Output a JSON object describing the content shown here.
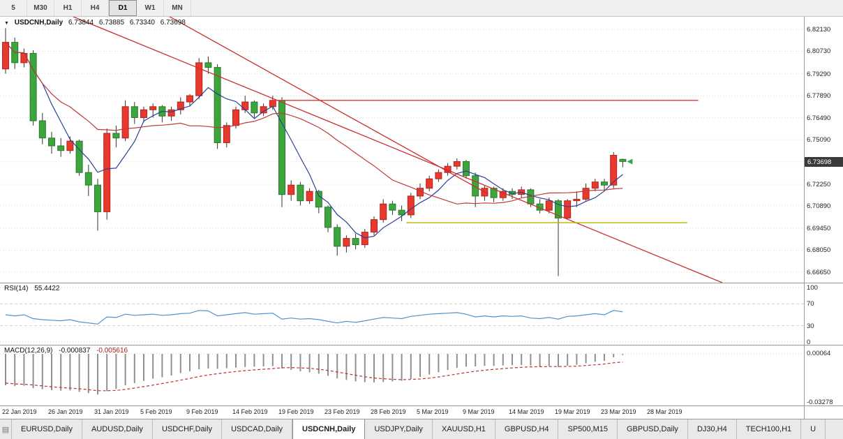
{
  "toolbar": {
    "timeframes": [
      "5",
      "M30",
      "H1",
      "H4",
      "D1",
      "W1",
      "MN"
    ],
    "active_timeframe": "D1"
  },
  "chart_header": {
    "dropdown_icon": "triangle-down",
    "symbol_period": "USDCNH,Daily",
    "open": "6.73844",
    "high": "6.73885",
    "low": "6.73340",
    "close": "6.73698"
  },
  "price_axis": {
    "labels": [
      "6.82130",
      "6.80730",
      "6.79290",
      "6.77890",
      "6.76490",
      "6.75090",
      "6.72250",
      "6.70890",
      "6.69450",
      "6.68050",
      "6.66650"
    ],
    "current_price": "6.73698"
  },
  "rsi_panel": {
    "label": "RSI(14)",
    "value": "55.4422",
    "axis_labels": [
      100,
      70,
      30,
      0
    ]
  },
  "macd_panel": {
    "label": "MACD(12,26,9)",
    "main_value": "-0.000837",
    "signal_value": "-0.005616",
    "axis_labels": [
      0.00064,
      -0.03278
    ]
  },
  "tabs": [
    "EURUSD,Daily",
    "AUDUSD,Daily",
    "USDCHF,Daily",
    "USDCAD,Daily",
    "USDCNH,Daily",
    "USDJPY,Daily",
    "XAUUSD,H1",
    "GBPUSD,H4",
    "SP500,M15",
    "GBPUSD,Daily",
    "DJ30,H4",
    "TECH100,H1",
    "U"
  ],
  "active_tab": "USDCNH,Daily",
  "colors": {
    "bull": "#e8392e",
    "bull_border": "#b3241c",
    "bear": "#3da53d",
    "bear_border": "#2b7a2b",
    "wick": "#333333",
    "ma_fast": "#2b3f95",
    "ma_slow": "#c03a3a",
    "trendline": "#cc2e2e",
    "hline_red": "#e23535",
    "hline_yellow": "#b5b800",
    "rsi_line": "#4f92cd",
    "macd_bar": "#8f8f8f",
    "macd_signal": "#c03030",
    "badge_bg": "#3a3a3a",
    "badge_text": "#ffffff",
    "marker": "#2fa84a"
  },
  "chart_data": {
    "type": "candlestick",
    "symbol": "USDCNH",
    "period": "Daily",
    "x_labels": [
      "22 Jan 2019",
      "26 Jan 2019",
      "31 Jan 2019",
      "5 Feb 2019",
      "9 Feb 2019",
      "14 Feb 2019",
      "19 Feb 2019",
      "23 Feb 2019",
      "28 Feb 2019",
      "5 Mar 2019",
      "9 Mar 2019",
      "14 Mar 2019",
      "19 Mar 2019",
      "23 Mar 2019",
      "28 Mar 2019"
    ],
    "x_label_step": 5,
    "main_y_range": [
      6.6598,
      6.8293
    ],
    "price_gridlines": [
      6.8213,
      6.8073,
      6.7929,
      6.7789,
      6.7649,
      6.7509,
      6.7369,
      6.7225,
      6.7089,
      6.6945,
      6.6805,
      6.6665
    ],
    "ohlc": [
      [
        6.796,
        6.822,
        6.793,
        6.813
      ],
      [
        6.813,
        6.816,
        6.796,
        6.8
      ],
      [
        6.8,
        6.809,
        6.797,
        6.806
      ],
      [
        6.806,
        6.808,
        6.76,
        6.763
      ],
      [
        6.763,
        6.768,
        6.748,
        6.752
      ],
      [
        6.752,
        6.756,
        6.742,
        6.747
      ],
      [
        6.747,
        6.752,
        6.74,
        6.744
      ],
      [
        6.744,
        6.753,
        6.742,
        6.75
      ],
      [
        6.75,
        6.751,
        6.728,
        6.73
      ],
      [
        6.73,
        6.735,
        6.715,
        6.722
      ],
      [
        6.722,
        6.726,
        6.693,
        6.705
      ],
      [
        6.705,
        6.758,
        6.7,
        6.755
      ],
      [
        6.755,
        6.76,
        6.746,
        6.752
      ],
      [
        6.752,
        6.776,
        6.75,
        6.772
      ],
      [
        6.772,
        6.775,
        6.761,
        6.765
      ],
      [
        6.765,
        6.772,
        6.762,
        6.77
      ],
      [
        6.77,
        6.774,
        6.765,
        6.772
      ],
      [
        6.772,
        6.773,
        6.762,
        6.766
      ],
      [
        6.766,
        6.772,
        6.763,
        6.77
      ],
      [
        6.77,
        6.778,
        6.767,
        6.775
      ],
      [
        6.775,
        6.78,
        6.772,
        6.779
      ],
      [
        6.779,
        6.803,
        6.777,
        6.8
      ],
      [
        6.8,
        6.804,
        6.793,
        6.797
      ],
      [
        6.797,
        6.799,
        6.745,
        6.749
      ],
      [
        6.749,
        6.762,
        6.746,
        6.76
      ],
      [
        6.76,
        6.772,
        6.758,
        6.77
      ],
      [
        6.77,
        6.779,
        6.768,
        6.775
      ],
      [
        6.775,
        6.776,
        6.765,
        6.768
      ],
      [
        6.768,
        6.774,
        6.766,
        6.772
      ],
      [
        6.772,
        6.779,
        6.77,
        6.776
      ],
      [
        6.776,
        6.778,
        6.708,
        6.716
      ],
      [
        6.716,
        6.725,
        6.712,
        6.722
      ],
      [
        6.722,
        6.724,
        6.709,
        6.712
      ],
      [
        6.712,
        6.72,
        6.71,
        6.718
      ],
      [
        6.718,
        6.719,
        6.704,
        6.708
      ],
      [
        6.708,
        6.709,
        6.692,
        6.695
      ],
      [
        6.695,
        6.697,
        6.677,
        6.683
      ],
      [
        6.683,
        6.69,
        6.679,
        6.688
      ],
      [
        6.688,
        6.691,
        6.681,
        6.684
      ],
      [
        6.684,
        6.694,
        6.682,
        6.692
      ],
      [
        6.692,
        6.702,
        6.69,
        6.7
      ],
      [
        6.7,
        6.713,
        6.698,
        6.71
      ],
      [
        6.71,
        6.712,
        6.703,
        6.706
      ],
      [
        6.706,
        6.709,
        6.699,
        6.703
      ],
      [
        6.703,
        6.717,
        6.701,
        6.715
      ],
      [
        6.715,
        6.723,
        6.713,
        6.72
      ],
      [
        6.72,
        6.728,
        6.718,
        6.726
      ],
      [
        6.726,
        6.732,
        6.724,
        6.73
      ],
      [
        6.73,
        6.736,
        6.728,
        6.734
      ],
      [
        6.734,
        6.739,
        6.732,
        6.737
      ],
      [
        6.737,
        6.738,
        6.726,
        6.728
      ],
      [
        6.728,
        6.73,
        6.708,
        6.715
      ],
      [
        6.715,
        6.722,
        6.712,
        6.72
      ],
      [
        6.72,
        6.721,
        6.711,
        6.714
      ],
      [
        6.714,
        6.72,
        6.712,
        6.718
      ],
      [
        6.718,
        6.72,
        6.713,
        6.716
      ],
      [
        6.716,
        6.721,
        6.714,
        6.719
      ],
      [
        6.719,
        6.72,
        6.708,
        6.71
      ],
      [
        6.71,
        6.713,
        6.704,
        6.706
      ],
      [
        6.706,
        6.714,
        6.704,
        6.712
      ],
      [
        6.712,
        6.713,
        6.664,
        6.701
      ],
      [
        6.701,
        6.713,
        6.7,
        6.712
      ],
      [
        6.712,
        6.718,
        6.708,
        6.713
      ],
      [
        6.713,
        6.723,
        6.712,
        6.72
      ],
      [
        6.72,
        6.726,
        6.718,
        6.724
      ],
      [
        6.724,
        6.726,
        6.718,
        6.722
      ],
      [
        6.722,
        6.743,
        6.72,
        6.741
      ],
      [
        6.7384,
        6.7389,
        6.7334,
        6.737
      ]
    ],
    "overlays": {
      "sma_fast_period": 5,
      "sma_slow_period": 20,
      "trendlines": [
        {
          "i1": 7.35,
          "p1": 6.8293,
          "i2": 77.8,
          "p2": 6.6598
        },
        {
          "i1": 17.0,
          "p1": 6.832,
          "i2": 52.4,
          "p2": 6.7163
        }
      ],
      "hlines": [
        {
          "price": 6.776,
          "i1": 28.8,
          "i2": 75.2,
          "color_key": "hline_red"
        },
        {
          "price": 6.698,
          "i1": 43.5,
          "i2": 74.0,
          "color_key": "hline_yellow"
        }
      ]
    },
    "rsi": {
      "period": 14,
      "range": [
        0,
        100
      ],
      "levels": [
        70,
        30
      ],
      "values": [
        50,
        48,
        50,
        43,
        41,
        40,
        39,
        41,
        37,
        35,
        33,
        46,
        45,
        51,
        49,
        50,
        51,
        49,
        50,
        52,
        53,
        58,
        57,
        48,
        50,
        52,
        54,
        51,
        52,
        53,
        42,
        44,
        42,
        43,
        41,
        38,
        35,
        38,
        36,
        39,
        42,
        45,
        44,
        43,
        47,
        49,
        51,
        52,
        53,
        54,
        51,
        46,
        48,
        46,
        48,
        47,
        48,
        44,
        43,
        45,
        42,
        47,
        48,
        50,
        52,
        50,
        58,
        55.44
      ]
    },
    "macd": {
      "fast": 12,
      "slow": 26,
      "signal_period": 9,
      "macd_y_range": [
        -0.0353,
        0.0057
      ],
      "main": [
        -0.0215,
        -0.022,
        -0.0218,
        -0.0235,
        -0.0242,
        -0.0248,
        -0.0252,
        -0.025,
        -0.026,
        -0.0268,
        -0.0278,
        -0.0255,
        -0.024,
        -0.0215,
        -0.02,
        -0.0185,
        -0.017,
        -0.016,
        -0.0148,
        -0.0132,
        -0.012,
        -0.0105,
        -0.01,
        -0.0102,
        -0.0098,
        -0.0094,
        -0.009,
        -0.0088,
        -0.0086,
        -0.0084,
        -0.01,
        -0.011,
        -0.012,
        -0.0126,
        -0.0136,
        -0.015,
        -0.0168,
        -0.0178,
        -0.0188,
        -0.0194,
        -0.0196,
        -0.0192,
        -0.0188,
        -0.0184,
        -0.0172,
        -0.0158,
        -0.0142,
        -0.0126,
        -0.011,
        -0.0096,
        -0.0088,
        -0.0086,
        -0.0082,
        -0.0082,
        -0.008,
        -0.0078,
        -0.0076,
        -0.008,
        -0.0086,
        -0.0084,
        -0.009,
        -0.0082,
        -0.0074,
        -0.0064,
        -0.0054,
        -0.0048,
        -0.0024,
        -0.000837
      ],
      "signal": [
        -0.02,
        -0.0205,
        -0.0208,
        -0.0213,
        -0.0219,
        -0.0225,
        -0.023,
        -0.0234,
        -0.0239,
        -0.0245,
        -0.0252,
        -0.0252,
        -0.025,
        -0.0243,
        -0.0234,
        -0.0224,
        -0.0214,
        -0.0203,
        -0.0192,
        -0.018,
        -0.0168,
        -0.0155,
        -0.0144,
        -0.0136,
        -0.0128,
        -0.0121,
        -0.0115,
        -0.011,
        -0.0105,
        -0.0101,
        -0.0095,
        -0.0094,
        -0.0096,
        -0.0099,
        -0.0105,
        -0.0113,
        -0.0124,
        -0.0135,
        -0.0146,
        -0.0157,
        -0.0165,
        -0.017,
        -0.0174,
        -0.0176,
        -0.0175,
        -0.0172,
        -0.0166,
        -0.0158,
        -0.0148,
        -0.0138,
        -0.0128,
        -0.0119,
        -0.0112,
        -0.0106,
        -0.0101,
        -0.0096,
        -0.0092,
        -0.0089,
        -0.0088,
        -0.0087,
        -0.0087,
        -0.0086,
        -0.0084,
        -0.008,
        -0.0075,
        -0.007,
        -0.0061,
        -0.005616
      ]
    }
  }
}
